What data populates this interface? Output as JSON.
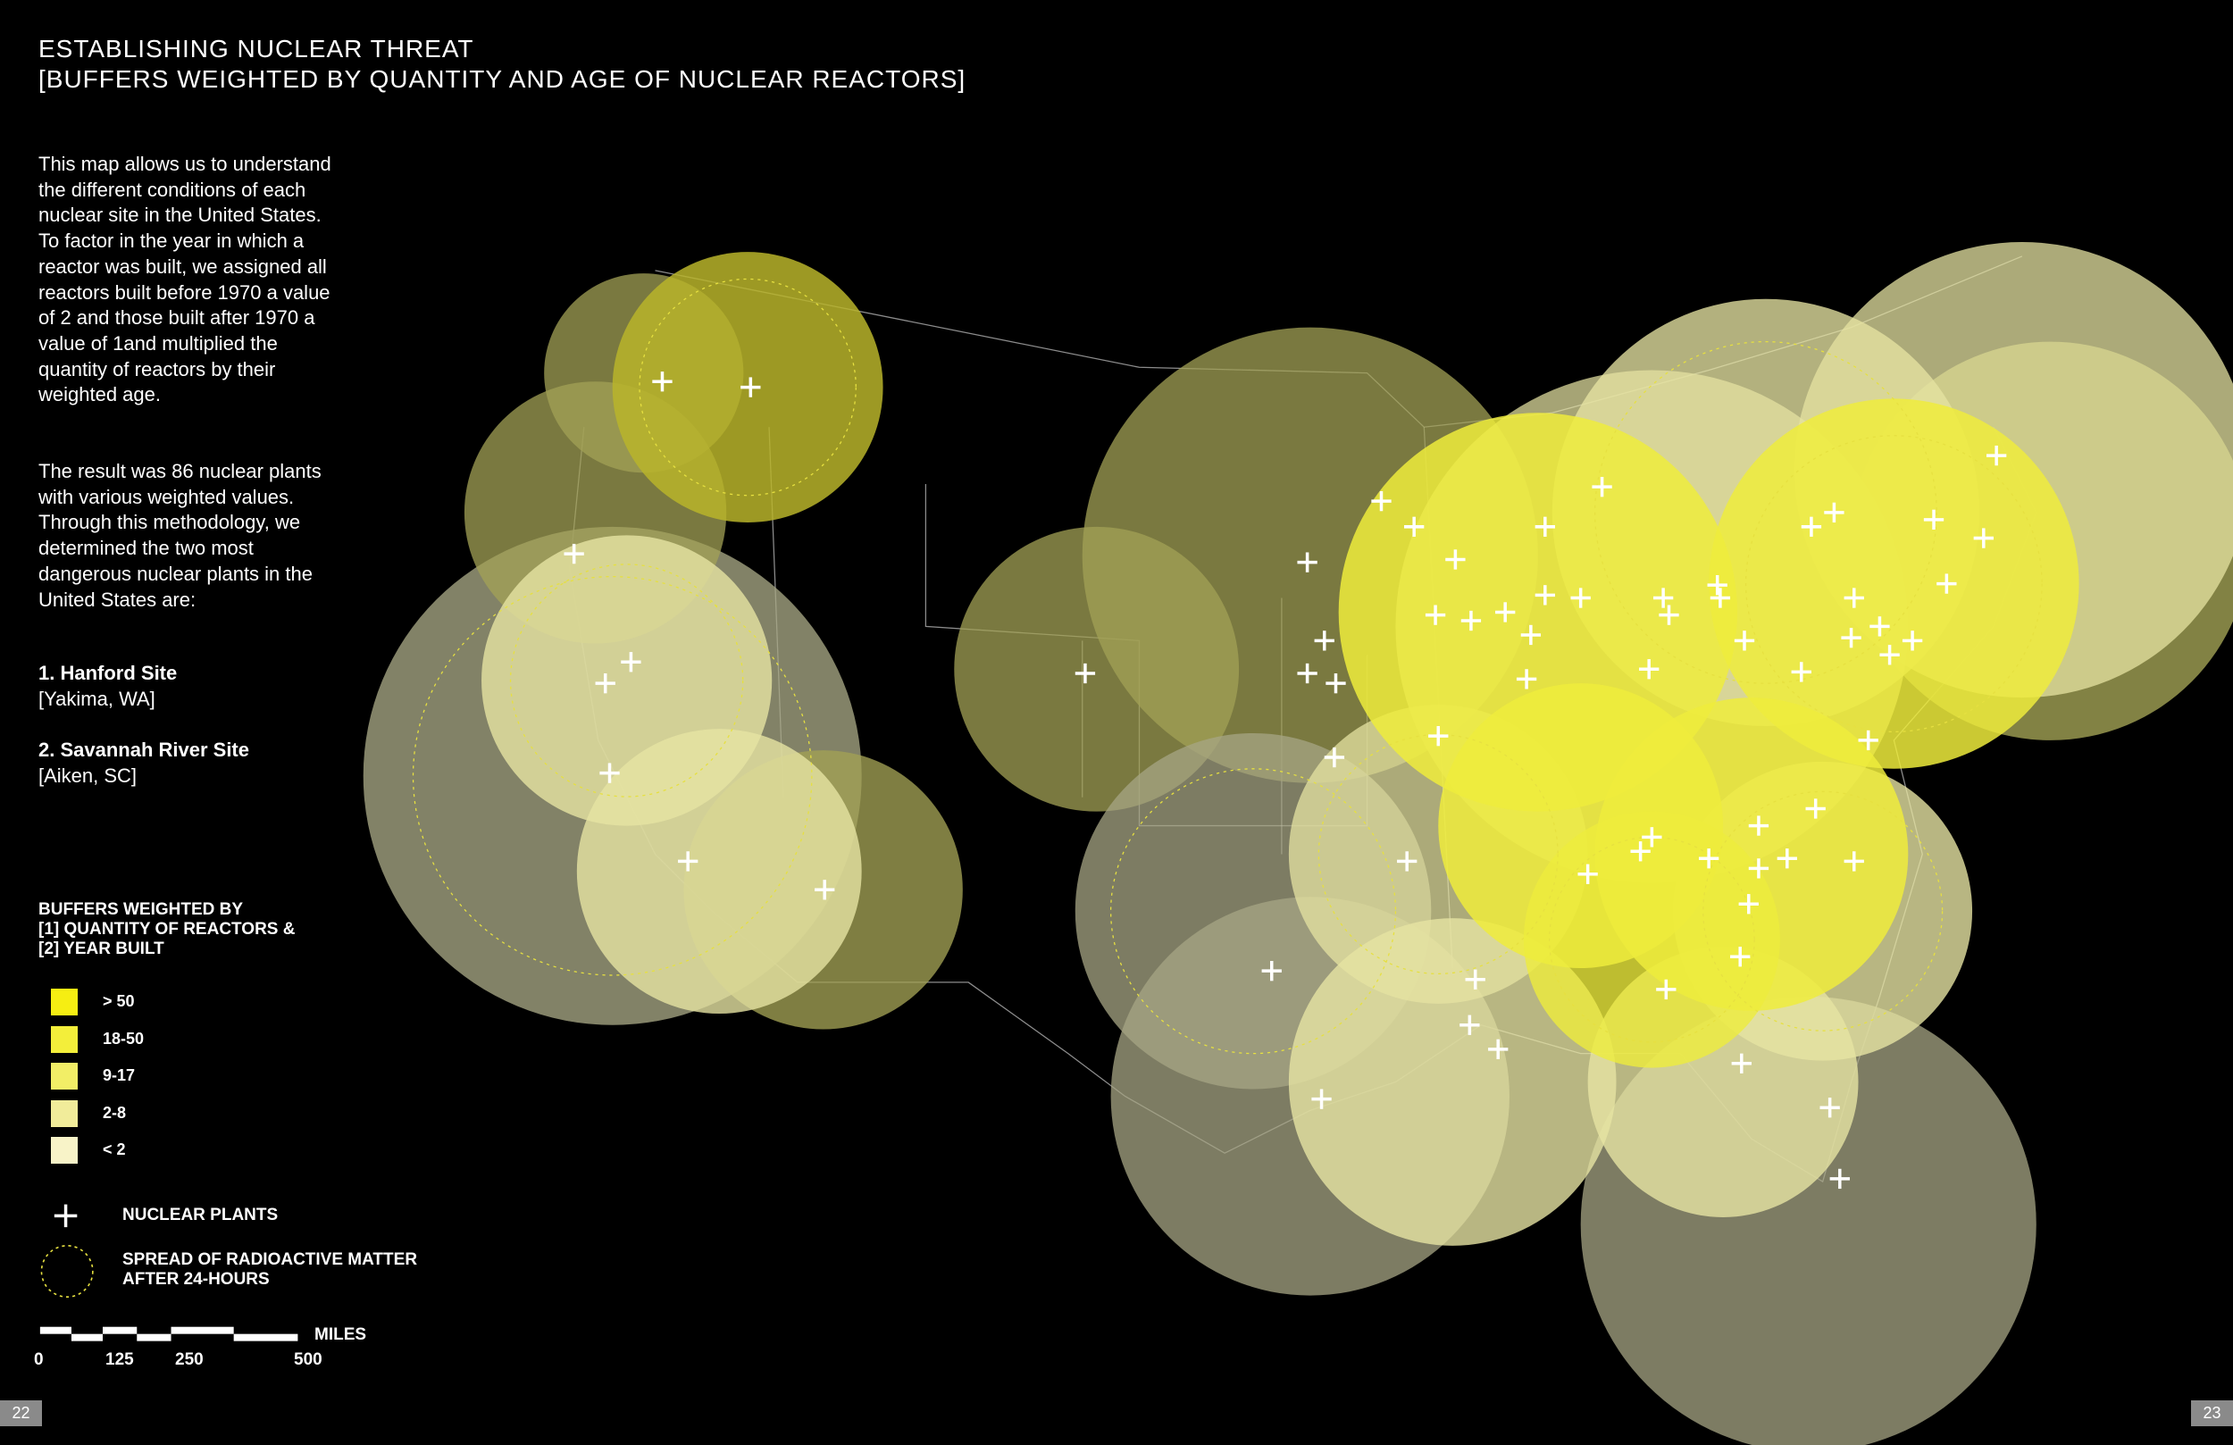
{
  "header": {
    "title": "ESTABLISHING NUCLEAR THREAT",
    "subtitle": "[BUFFERS WEIGHTED BY QUANTITY AND AGE OF NUCLEAR REACTORS]"
  },
  "intro": [
    "This map allows us to understand the different conditions of each nuclear site in the United States. To factor in the year in which a reactor was built, we assigned all reactors built before 1970 a value of 2 and those built after 1970 a value of 1and multiplied the quantity of reactors by their weighted age.",
    "The result was 86 nuclear plants with various weighted values. Through this methodology, we determined the two most dangerous nuclear plants in the United States are:"
  ],
  "sites": [
    {
      "name": "1. Hanford Site",
      "location": "[Yakima, WA]"
    },
    {
      "name": "2. Savannah River Site",
      "location": "[Aiken, SC]"
    }
  ],
  "legend": {
    "title": [
      "BUFFERS WEIGHTED BY",
      "[1] QUANTITY OF REACTORS &",
      "[2] YEAR BUILT"
    ],
    "items": [
      {
        "label": "> 50",
        "color": "#f6ee12"
      },
      {
        "label": "18-50",
        "color": "#f3ee3a"
      },
      {
        "label": "9-17",
        "color": "#f2ee66"
      },
      {
        "label": "2-8",
        "color": "#f1ec9a"
      },
      {
        "label": "< 2",
        "color": "#f8f3c8"
      }
    ],
    "plants": "NUCLEAR PLANTS",
    "spread": [
      "SPREAD OF RADIOACTIVE MATTER",
      "AFTER 24-HOURS"
    ]
  },
  "scale": {
    "unit": "MILES",
    "ticks": [
      "0",
      "125",
      "250",
      "500"
    ]
  },
  "pages": [
    "22",
    "23"
  ]
}
